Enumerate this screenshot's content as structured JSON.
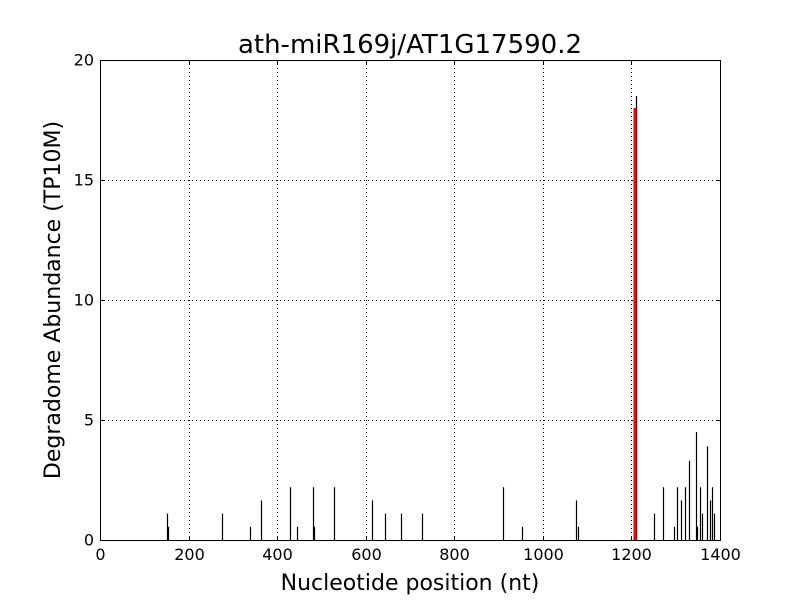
{
  "chart_data": {
    "type": "bar",
    "title": "ath-miR169j/AT1G17590.2",
    "xlabel": "Nucleotide position (nt)",
    "ylabel": "Degradome Abundance (TP10M)",
    "xlim": [
      0,
      1400
    ],
    "ylim": [
      0,
      20
    ],
    "xticks": [
      "0",
      "200",
      "400",
      "600",
      "800",
      "1000",
      "1200",
      "1400"
    ],
    "yticks": [
      "0",
      "5",
      "10",
      "15",
      "20"
    ],
    "grid": true,
    "colors": {
      "series": "#000000",
      "highlight": "#ff0000"
    },
    "series": [
      {
        "x": [
          152,
          154,
          276,
          338,
          364,
          430,
          444,
          480,
          483,
          528,
          615,
          643,
          679,
          727,
          911,
          952,
          1074,
          1079,
          1210,
          1251,
          1272,
          1295,
          1302,
          1312,
          1322,
          1330,
          1345,
          1348,
          1355,
          1360,
          1370,
          1377,
          1383,
          1386
        ],
        "values": [
          1.1,
          0.55,
          1.1,
          0.55,
          1.65,
          2.2,
          0.55,
          2.2,
          0.55,
          2.2,
          1.65,
          1.1,
          1.1,
          1.1,
          2.2,
          0.55,
          1.65,
          0.55,
          18.5,
          1.1,
          2.2,
          0.55,
          2.2,
          1.65,
          2.2,
          3.3,
          4.5,
          0.55,
          2.2,
          1.1,
          3.9,
          1.65,
          2.2,
          1.1
        ]
      },
      {
        "x": [
          1208
        ],
        "values": [
          18.0
        ]
      }
    ]
  }
}
